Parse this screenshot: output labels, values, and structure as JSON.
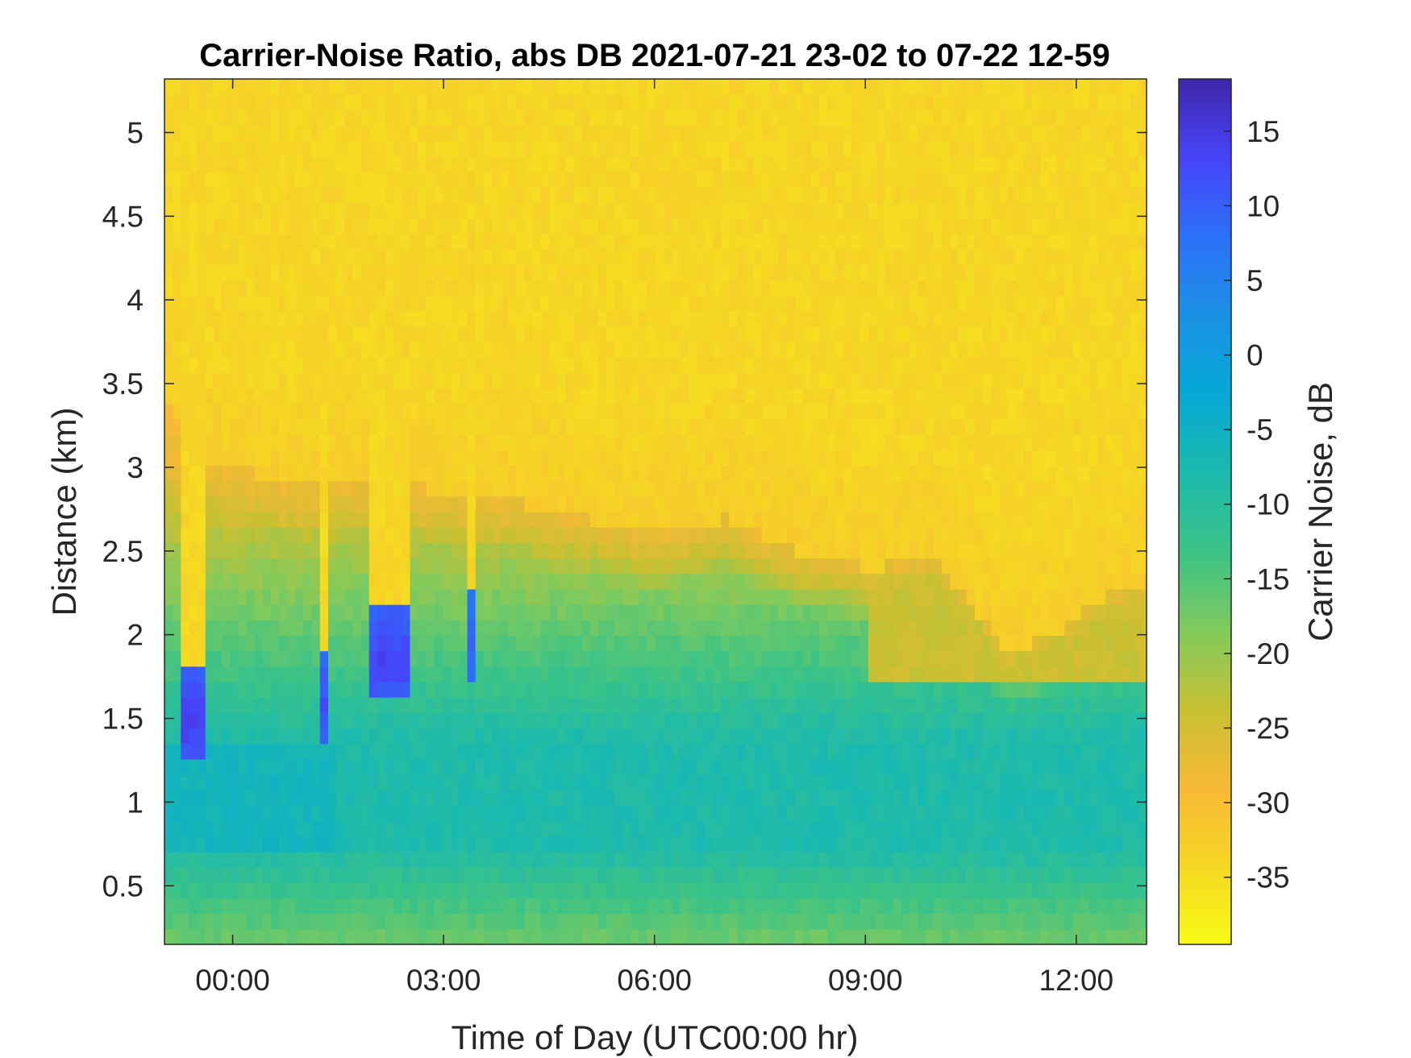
{
  "chart_data": {
    "type": "heatmap",
    "title": "Carrier-Noise Ratio, abs DB 2021-07-21 23-02 to 07-22 12-59",
    "xlabel": "Time of Day (UTC00:00 hr)",
    "ylabel": "Distance (km)",
    "colorbar_label": "Carrier Noise, dB",
    "x_unit": "hours relative to 2021-07-22 00:00 UTC",
    "xlim": [
      -0.97,
      13.0
    ],
    "ylim": [
      0.15,
      5.32
    ],
    "clim": [
      -39.5,
      18.5
    ],
    "x_ticks": [
      0,
      3,
      6,
      9,
      12
    ],
    "x_tick_labels": [
      "00:00",
      "03:00",
      "06:00",
      "09:00",
      "12:00"
    ],
    "y_ticks": [
      0.5,
      1,
      1.5,
      2,
      2.5,
      3,
      3.5,
      4,
      4.5,
      5
    ],
    "y_tick_labels": [
      "0.5",
      "1",
      "1.5",
      "2",
      "2.5",
      "3",
      "3.5",
      "4",
      "4.5",
      "5"
    ],
    "colorbar_ticks": [
      15,
      10,
      5,
      0,
      -5,
      -10,
      -15,
      -20,
      -25,
      -30,
      -35
    ],
    "colorbar_tick_labels": [
      "15",
      "10",
      "5",
      "0",
      "-5",
      "-10",
      "-15",
      "-20",
      "-25",
      "-30",
      "-35"
    ],
    "colormap": "parula",
    "colormap_stops": [
      "#3e26a8",
      "#4743f8",
      "#2d6ff8",
      "#1c90e5",
      "#06a7d7",
      "#1ab9b0",
      "#3dc385",
      "#82ca5c",
      "#c9c032",
      "#f8b936",
      "#f5d723",
      "#f9fb15"
    ],
    "background_level_db": -34,
    "description_profile_km": [
      0.15,
      1.0,
      2.0,
      2.6,
      2.9,
      3.2,
      5.32
    ],
    "signal_top_km": [
      {
        "t": -0.97,
        "km": 3.4
      },
      {
        "t": -0.6,
        "km": 3.1
      },
      {
        "t": 0.0,
        "km": 3.0
      },
      {
        "t": 1.0,
        "km": 2.9
      },
      {
        "t": 2.0,
        "km": 2.95
      },
      {
        "t": 3.0,
        "km": 2.85
      },
      {
        "t": 4.0,
        "km": 2.8
      },
      {
        "t": 5.0,
        "km": 2.7
      },
      {
        "t": 6.0,
        "km": 2.6
      },
      {
        "t": 7.0,
        "km": 2.7
      },
      {
        "t": 8.0,
        "km": 2.5
      },
      {
        "t": 9.0,
        "km": 2.4
      },
      {
        "t": 10.0,
        "km": 2.45
      },
      {
        "t": 10.5,
        "km": 2.2
      },
      {
        "t": 11.0,
        "km": 1.9
      },
      {
        "t": 11.7,
        "km": 2.0
      },
      {
        "t": 12.2,
        "km": 2.2
      },
      {
        "t": 13.0,
        "km": 2.3
      }
    ],
    "cloud_gaps": [
      {
        "t0": -0.7,
        "t1": -0.35,
        "base_km": 1.5,
        "peak_db": 14
      },
      {
        "t0": 1.3,
        "t1": 1.38,
        "base_km": 1.6,
        "peak_db": 12
      },
      {
        "t0": 1.9,
        "t1": 2.55,
        "base_km": 1.85,
        "peak_db": 13
      },
      {
        "t0": 3.38,
        "t1": 3.5,
        "base_km": 1.95,
        "peak_db": 10
      }
    ]
  }
}
